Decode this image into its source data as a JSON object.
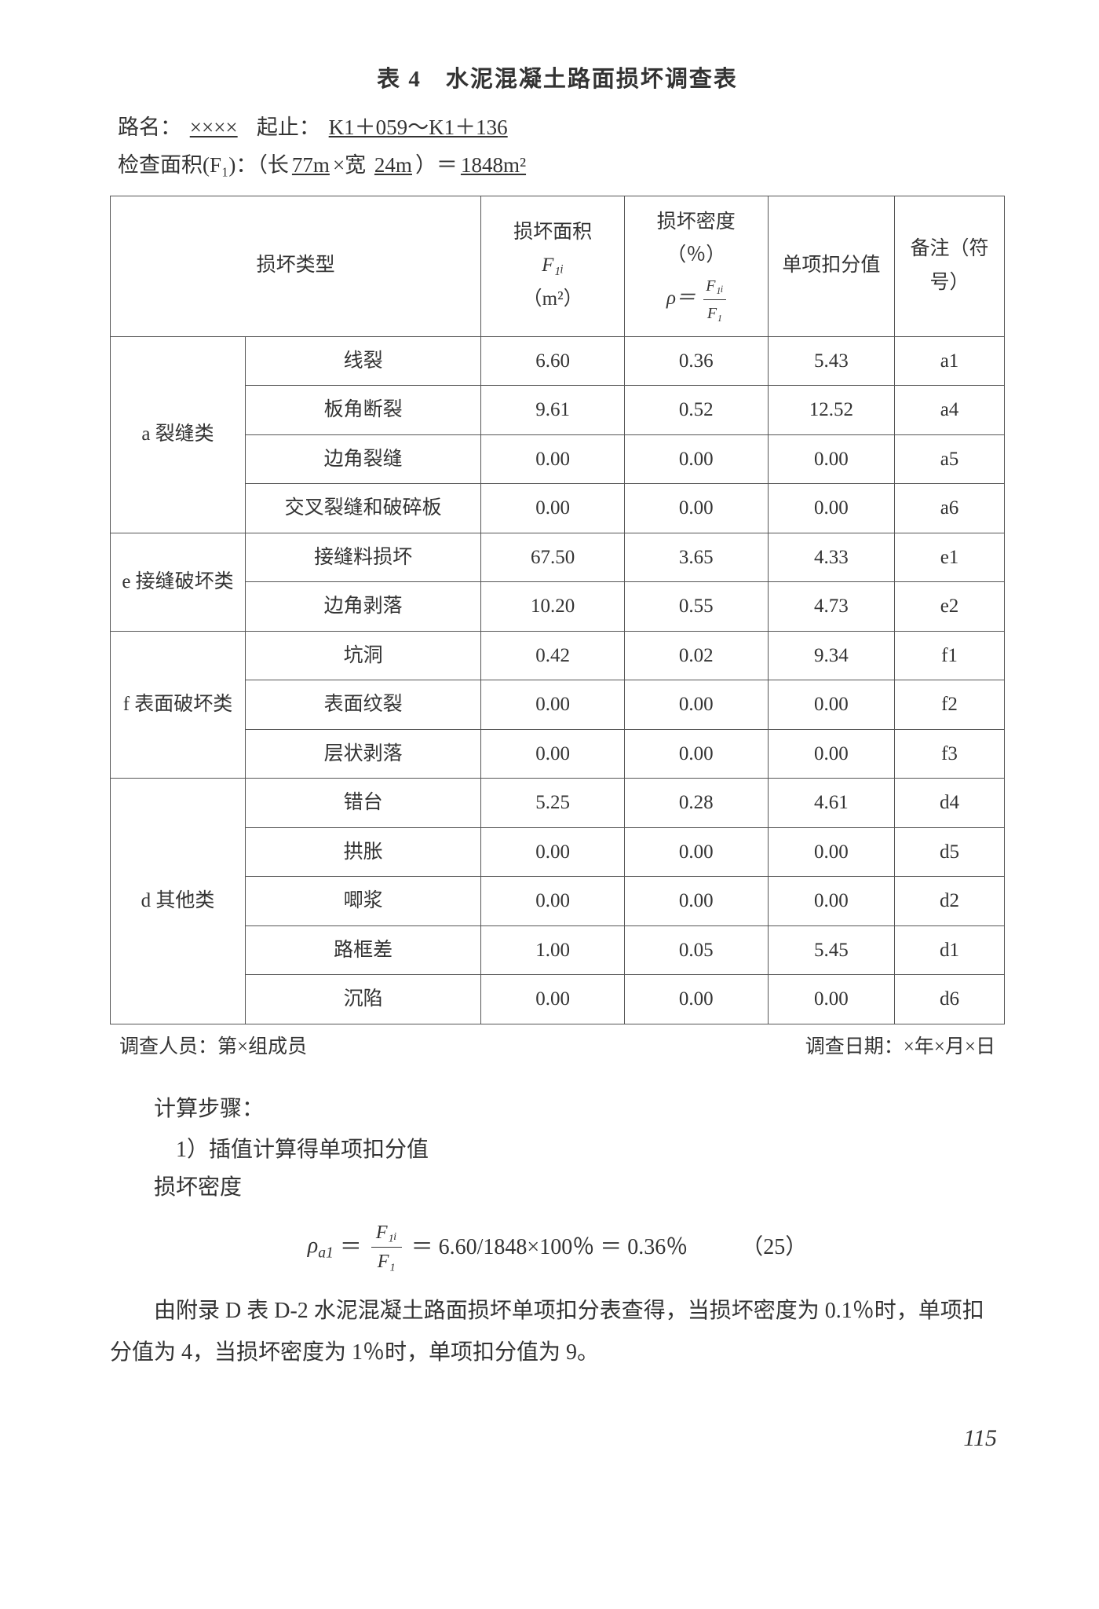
{
  "title": "表 4　水泥混凝土路面损坏调查表",
  "meta": {
    "road_label": "路名：",
    "road_value": "××××",
    "range_label": "起止：",
    "range_value": "K1＋059～K1＋136",
    "area_label": "检查面积(F₁)：（长",
    "area_len": "77m",
    "area_mid": "×宽 ",
    "area_wid": "24m",
    "area_eq": "）＝",
    "area_val": "1848m²"
  },
  "headers": {
    "type": "损坏类型",
    "area": "损坏面积",
    "area_sym": "F₁ᵢ",
    "area_unit": "（m²）",
    "density": "损坏密度",
    "density_unit": "（％）",
    "rho": "ρ＝",
    "rho_num": "F₁ᵢ",
    "rho_den": "F₁",
    "deduct": "单项扣分值",
    "note": "备注（符号）"
  },
  "groups": [
    {
      "name": "a 裂缝类",
      "rows": [
        {
          "sub": "线裂",
          "area": "6.60",
          "dens": "0.36",
          "ded": "5.43",
          "note": "a1"
        },
        {
          "sub": "板角断裂",
          "area": "9.61",
          "dens": "0.52",
          "ded": "12.52",
          "note": "a4"
        },
        {
          "sub": "边角裂缝",
          "area": "0.00",
          "dens": "0.00",
          "ded": "0.00",
          "note": "a5"
        },
        {
          "sub": "交叉裂缝和破碎板",
          "area": "0.00",
          "dens": "0.00",
          "ded": "0.00",
          "note": "a6"
        }
      ]
    },
    {
      "name": "e 接缝破坏类",
      "rows": [
        {
          "sub": "接缝料损坏",
          "area": "67.50",
          "dens": "3.65",
          "ded": "4.33",
          "note": "e1"
        },
        {
          "sub": "边角剥落",
          "area": "10.20",
          "dens": "0.55",
          "ded": "4.73",
          "note": "e2"
        }
      ]
    },
    {
      "name": "f 表面破坏类",
      "rows": [
        {
          "sub": "坑洞",
          "area": "0.42",
          "dens": "0.02",
          "ded": "9.34",
          "note": "f1"
        },
        {
          "sub": "表面纹裂",
          "area": "0.00",
          "dens": "0.00",
          "ded": "0.00",
          "note": "f2"
        },
        {
          "sub": "层状剥落",
          "area": "0.00",
          "dens": "0.00",
          "ded": "0.00",
          "note": "f3"
        }
      ]
    },
    {
      "name": "d 其他类",
      "rows": [
        {
          "sub": "错台",
          "area": "5.25",
          "dens": "0.28",
          "ded": "4.61",
          "note": "d4"
        },
        {
          "sub": "拱胀",
          "area": "0.00",
          "dens": "0.00",
          "ded": "0.00",
          "note": "d5"
        },
        {
          "sub": "唧浆",
          "area": "0.00",
          "dens": "0.00",
          "ded": "0.00",
          "note": "d2"
        },
        {
          "sub": "路框差",
          "area": "1.00",
          "dens": "0.05",
          "ded": "5.45",
          "note": "d1"
        },
        {
          "sub": "沉陷",
          "area": "0.00",
          "dens": "0.00",
          "ded": "0.00",
          "note": "d6"
        }
      ]
    }
  ],
  "footer": {
    "left": "调查人员：第×组成员",
    "right": "调查日期：×年×月×日"
  },
  "calc": {
    "steps": "计算步骤：",
    "step1": "1）插值计算得单项扣分值",
    "density_label": "损坏密度",
    "rho_left": "ρ",
    "rho_sub": "a1",
    "eq": "＝",
    "frac_num": "F₁ᵢ",
    "frac_den": "F₁",
    "rhs": "＝ 6.60/1848×100％ ＝ 0.36％",
    "eqnum": "（25）",
    "para": "由附录 D 表 D-2 水泥混凝土路面损坏单项扣分表查得，当损坏密度为 0.1％时，单项扣分值为 4，当损坏密度为 1％时，单项扣分值为 9。"
  },
  "pagenum": "115"
}
